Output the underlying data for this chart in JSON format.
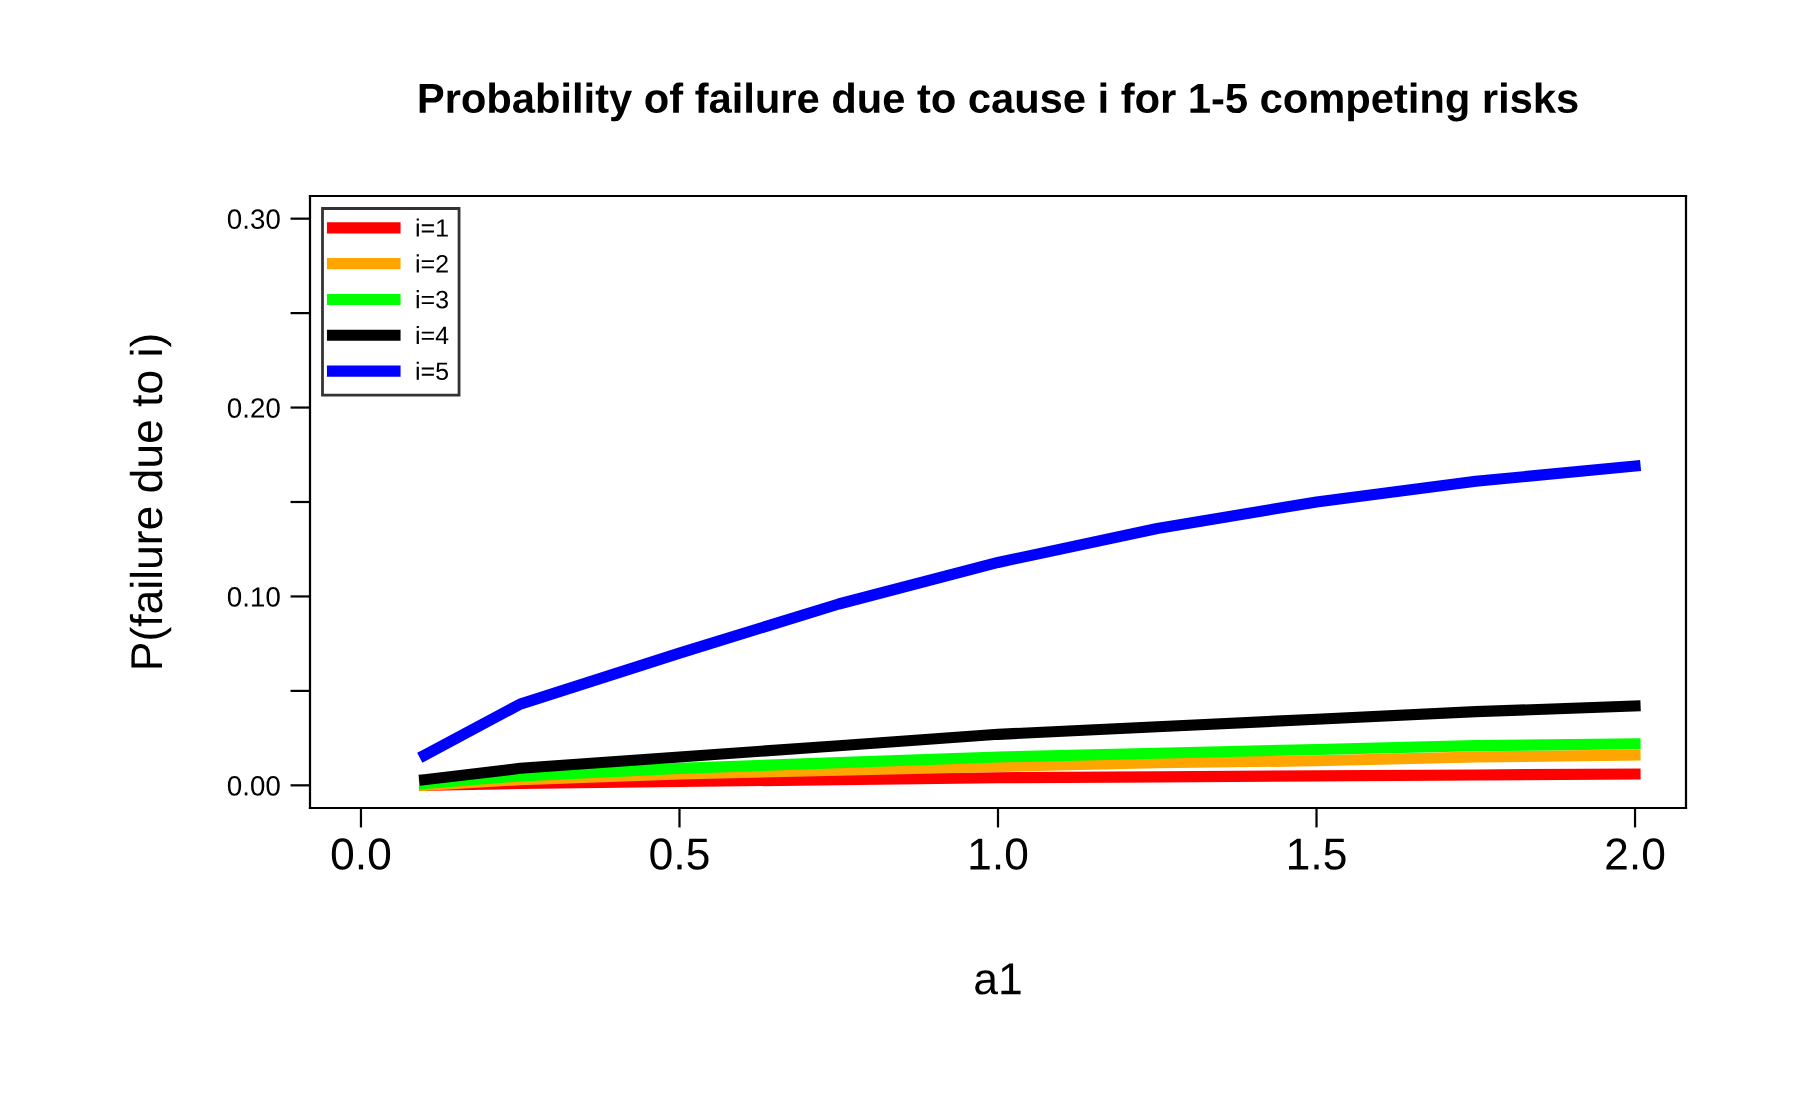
{
  "chart_data": {
    "type": "line",
    "title": "Probability of failure due to cause i for 1-5 competing risks",
    "xlabel": "a1",
    "ylabel": "P(failure due to i)",
    "x": [
      0.1,
      0.25,
      0.5,
      0.75,
      1.0,
      1.25,
      1.5,
      1.75,
      2.0
    ],
    "series": [
      {
        "name": "i=1",
        "color": "#ff0000",
        "values": [
          0.0,
          0.001,
          0.002,
          0.003,
          0.004,
          0.0045,
          0.005,
          0.0055,
          0.006
        ]
      },
      {
        "name": "i=2",
        "color": "#ffa500",
        "values": [
          0.0,
          0.003,
          0.006,
          0.008,
          0.01,
          0.012,
          0.013,
          0.015,
          0.016
        ]
      },
      {
        "name": "i=3",
        "color": "#00ff00",
        "values": [
          0.001,
          0.005,
          0.009,
          0.012,
          0.015,
          0.017,
          0.019,
          0.021,
          0.022
        ]
      },
      {
        "name": "i=4",
        "color": "#000000",
        "values": [
          0.003,
          0.009,
          0.015,
          0.021,
          0.027,
          0.031,
          0.035,
          0.039,
          0.042
        ]
      },
      {
        "name": "i=5",
        "color": "#0000ff",
        "values": [
          0.016,
          0.043,
          0.07,
          0.096,
          0.118,
          0.136,
          0.15,
          0.161,
          0.169
        ]
      }
    ],
    "xlim": [
      -0.08,
      2.08
    ],
    "ylim": [
      -0.012,
      0.312
    ],
    "xticks": [
      {
        "value": 0.0,
        "label": "0.0"
      },
      {
        "value": 0.5,
        "label": "0.5"
      },
      {
        "value": 1.0,
        "label": "1.0"
      },
      {
        "value": 1.5,
        "label": "1.5"
      },
      {
        "value": 2.0,
        "label": "2.0"
      }
    ],
    "yticks": [
      {
        "value": 0.0,
        "label": "0.00"
      },
      {
        "value": 0.05,
        "label": null
      },
      {
        "value": 0.1,
        "label": "0.10"
      },
      {
        "value": 0.15,
        "label": null
      },
      {
        "value": 0.2,
        "label": "0.20"
      },
      {
        "value": 0.25,
        "label": null
      },
      {
        "value": 0.3,
        "label": "0.30"
      }
    ],
    "grid": false,
    "legend": "top left",
    "line_style": "solid",
    "marker": "none"
  }
}
